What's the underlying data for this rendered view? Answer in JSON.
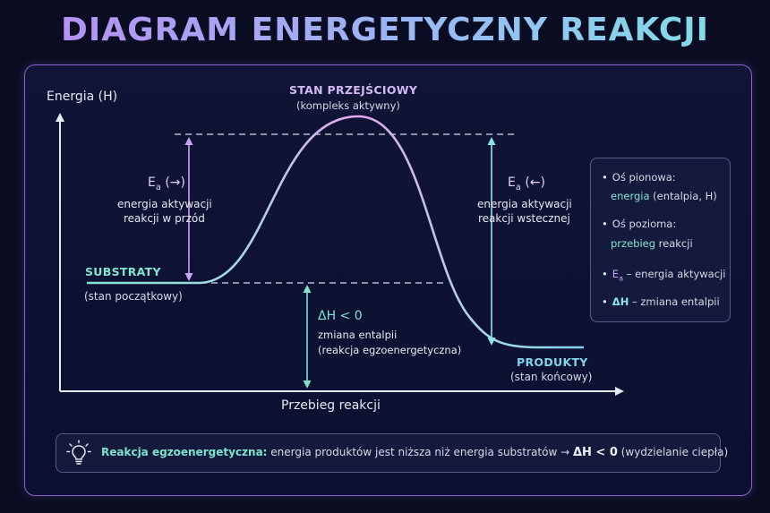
{
  "title": "DIAGRAM ENERGETYCZNY REAKCJI",
  "axes": {
    "y_label": "Energia (H)",
    "x_label": "Przebieg reakcji"
  },
  "transition_state": {
    "title": "STAN PRZEJŚCIOWY",
    "subtitle": "(kompleks aktywny)"
  },
  "substrates": {
    "title": "SUBSTRATY",
    "subtitle": "(stan początkowy)"
  },
  "products": {
    "title": "PRODUKTY",
    "subtitle": "(stan końcowy)"
  },
  "ea_forward": {
    "symbol": "E",
    "subscript": "a",
    "arrow": " (→)",
    "desc_line1": "energia aktywacji",
    "desc_line2": "reakcji w przód"
  },
  "ea_backward": {
    "symbol": "E",
    "subscript": "a",
    "arrow": " (←)",
    "desc_line1": "energia aktywacji",
    "desc_line2": "reakcji wstecznej"
  },
  "delta_h": {
    "label": "ΔH < 0",
    "desc_line1": "zmiana entalpii",
    "desc_line2": "(reakcja egzoenergetyczna)"
  },
  "legend": {
    "item1_line1": "Oś pionowa:",
    "item1_hl": "energia",
    "item1_rest": " (entalpia, H)",
    "item2_line1": "Oś pozioma:",
    "item2_hl": "przebieg",
    "item2_rest": " reakcji",
    "item3_symbol": "E",
    "item3_sub": "a",
    "item3_rest": " – energia aktywacji",
    "item4_symbol": "ΔH",
    "item4_rest": " – zmiana entalpii",
    "bullet": "•"
  },
  "note": {
    "lead": "Reakcja egzoenergetyczna:",
    "text": " energia produktów jest niższa niż energia substratów → ",
    "dh": "ΔH < 0",
    "tail": " (wydzielanie ciepła)"
  },
  "colors": {
    "curve_start": "#7ee3cf",
    "curve_peak": "#e6a6f0",
    "curve_end": "#7fd4ea",
    "frame": "#8a63d4",
    "arrow_violet": "#c7a4f5",
    "arrow_cyan": "#8fe3e8",
    "arrow_green": "#7ee3cf"
  },
  "icons": {
    "note": "lightbulb-icon"
  }
}
